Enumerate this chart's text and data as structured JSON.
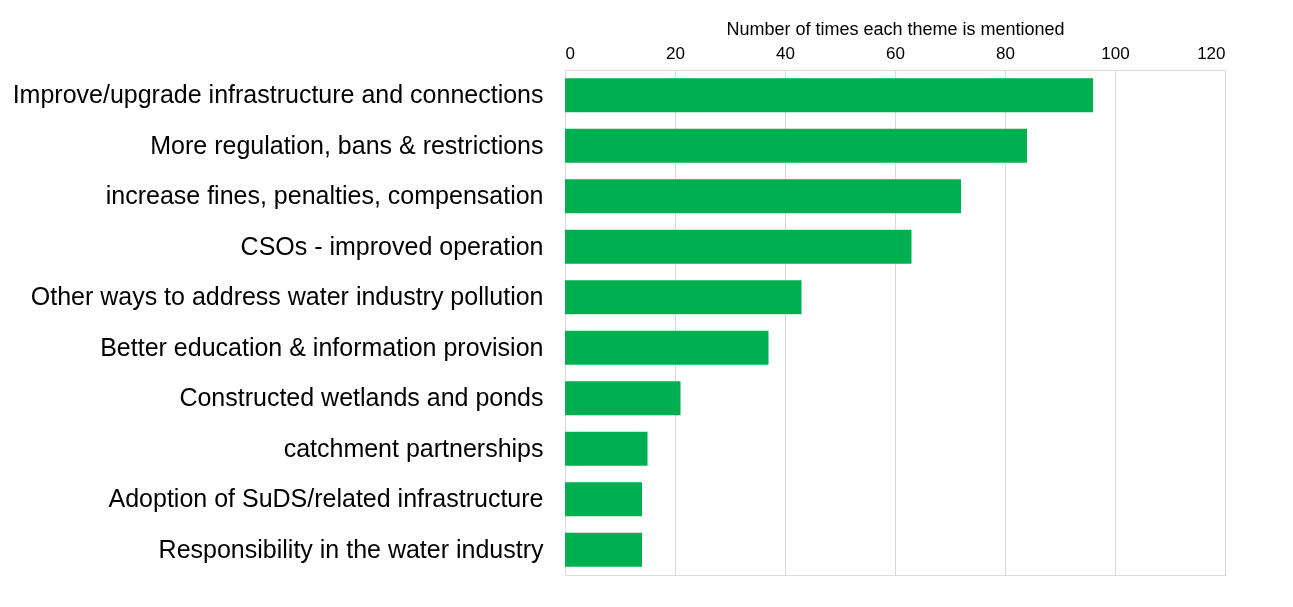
{
  "chart_data": {
    "type": "bar",
    "orientation": "horizontal",
    "xlabel": "Number of times each theme is mentioned",
    "categories": [
      "Improve/upgrade infrastructure and connections",
      "More regulation, bans & restrictions",
      "increase fines, penalties, compensation",
      "CSOs - improved operation",
      "Other ways to address water industry pollution",
      "Better education & information provision",
      "Constructed wetlands and ponds",
      "catchment partnerships",
      "Adoption of SuDS/related infrastructure",
      "Responsibility in the water industry"
    ],
    "values": [
      96,
      84,
      72,
      63,
      43,
      37,
      21,
      15,
      14,
      14
    ],
    "color": "#00b050",
    "xlim": [
      0,
      120
    ],
    "xticks": [
      0,
      20,
      40,
      60,
      80,
      100,
      120
    ],
    "grid": "x"
  }
}
